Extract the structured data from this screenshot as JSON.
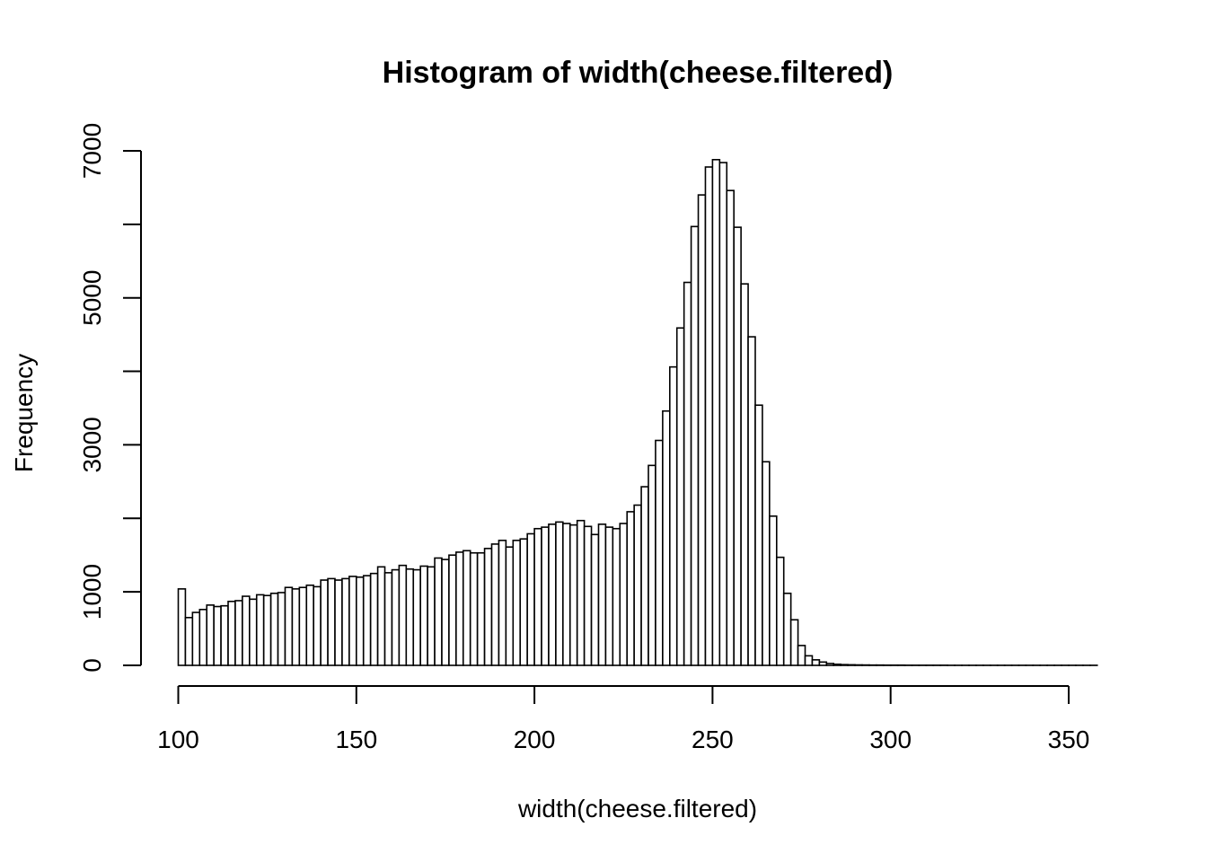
{
  "chart_data": {
    "type": "bar",
    "title": "Histogram of width(cheese.filtered)",
    "xlabel": "width(cheese.filtered)",
    "ylabel": "Frequency",
    "xlim": [
      100,
      358
    ],
    "ylim": [
      0,
      7000
    ],
    "x_ticks": [
      100,
      150,
      200,
      250,
      300,
      350
    ],
    "y_ticks": [
      0,
      1000,
      2000,
      3000,
      4000,
      5000,
      6000,
      7000
    ],
    "y_tick_labels": [
      "0",
      "1000",
      "",
      "3000",
      "",
      "5000",
      "",
      "7000"
    ],
    "bin_start": 100,
    "bin_width": 2,
    "values": [
      1040,
      650,
      720,
      760,
      820,
      800,
      810,
      870,
      880,
      940,
      900,
      960,
      950,
      980,
      990,
      1060,
      1040,
      1060,
      1090,
      1070,
      1160,
      1180,
      1160,
      1180,
      1210,
      1200,
      1220,
      1250,
      1340,
      1260,
      1300,
      1360,
      1310,
      1300,
      1350,
      1340,
      1460,
      1440,
      1500,
      1540,
      1560,
      1530,
      1530,
      1590,
      1650,
      1700,
      1610,
      1700,
      1720,
      1790,
      1860,
      1880,
      1920,
      1950,
      1930,
      1910,
      1970,
      1890,
      1780,
      1920,
      1880,
      1860,
      1930,
      2090,
      2180,
      2430,
      2720,
      3060,
      3460,
      4060,
      4590,
      5210,
      5970,
      6400,
      6780,
      6880,
      6840,
      6460,
      5960,
      5190,
      4470,
      3540,
      2770,
      2030,
      1470,
      980,
      620,
      270,
      130,
      75,
      45,
      25,
      15,
      10,
      8,
      6,
      5,
      4,
      4,
      3,
      3,
      3,
      2,
      2,
      2,
      2,
      2,
      2,
      1,
      1,
      1,
      1,
      1,
      1,
      1,
      1,
      1,
      1,
      1,
      1,
      1,
      1,
      1,
      1,
      1,
      1,
      1,
      1,
      1
    ]
  }
}
